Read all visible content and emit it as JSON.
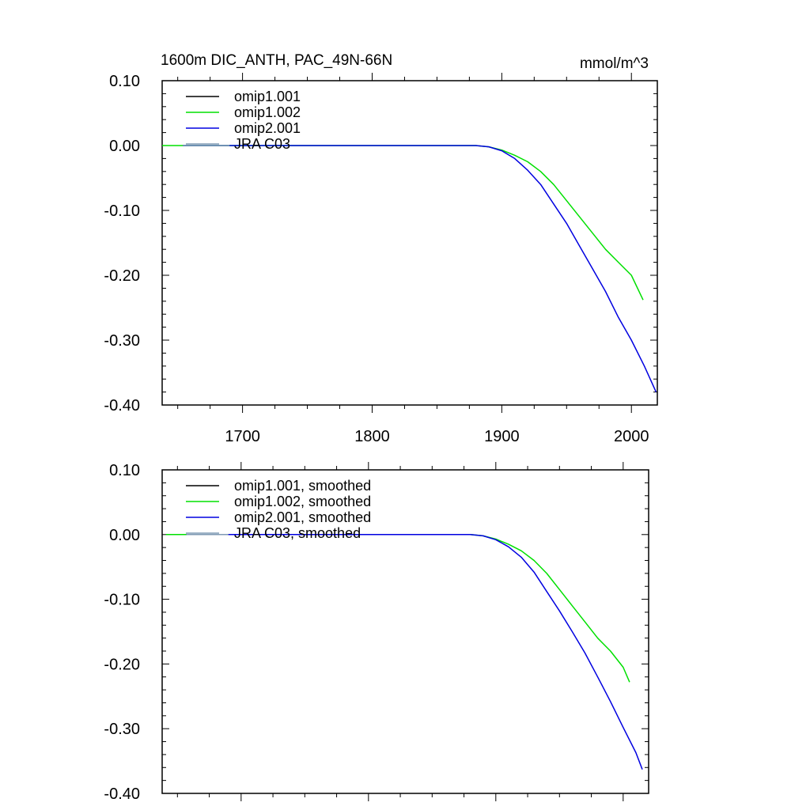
{
  "figure": {
    "title_left": "1600m DIC_ANTH, PAC_49N-66N",
    "title_right": "mmol/m^3"
  },
  "chart_data": [
    {
      "type": "line",
      "title": "1600m DIC_ANTH, PAC_49N-66N",
      "units": "mmol/m^3",
      "xlim": [
        1638,
        2020
      ],
      "ylim": [
        -0.4,
        0.1
      ],
      "x_ticks": [
        1700,
        1800,
        1900,
        2000
      ],
      "x_tick_labels": [
        "1700",
        "1800",
        "1900",
        "2000"
      ],
      "y_ticks": [
        0.1,
        0.0,
        -0.1,
        -0.2,
        -0.3,
        -0.4
      ],
      "y_tick_labels": [
        "0.10",
        "0.00",
        "-0.10",
        "-0.20",
        "-0.30",
        "-0.40"
      ],
      "legend_position": "top-left",
      "series": [
        {
          "name": "omip1.001",
          "color": "#000000",
          "x": [],
          "y": []
        },
        {
          "name": "omip1.002",
          "color": "#00e000",
          "x": [
            1638,
            1880,
            1890,
            1900,
            1910,
            1920,
            1930,
            1940,
            1950,
            1960,
            1970,
            1980,
            1990,
            2000,
            2009
          ],
          "y": [
            0.0,
            0.0,
            -0.002,
            -0.007,
            -0.015,
            -0.025,
            -0.04,
            -0.06,
            -0.085,
            -0.11,
            -0.135,
            -0.16,
            -0.18,
            -0.2,
            -0.238
          ]
        },
        {
          "name": "omip2.001",
          "color": "#0000e0",
          "x": [
            1654,
            1880,
            1890,
            1900,
            1910,
            1920,
            1930,
            1940,
            1950,
            1960,
            1970,
            1980,
            1990,
            2000,
            2010,
            2019
          ],
          "y": [
            0.0,
            0.0,
            -0.002,
            -0.008,
            -0.02,
            -0.038,
            -0.06,
            -0.09,
            -0.12,
            -0.155,
            -0.19,
            -0.225,
            -0.265,
            -0.3,
            -0.34,
            -0.38
          ]
        },
        {
          "name": "JRA C03",
          "color": "#7f9ab3",
          "x": [
            1654,
            1690
          ],
          "y": [
            0.0,
            0.0
          ]
        }
      ]
    },
    {
      "type": "line",
      "xlim": [
        1638,
        2020
      ],
      "ylim": [
        -0.4,
        0.1
      ],
      "x_ticks": [
        1700,
        1800,
        1900,
        2000
      ],
      "y_ticks": [
        0.1,
        0.0,
        -0.1,
        -0.2,
        -0.3,
        -0.4
      ],
      "y_tick_labels": [
        "0.10",
        "0.00",
        "-0.10",
        "-0.20",
        "-0.30",
        "-0.40"
      ],
      "legend_position": "top-left",
      "series": [
        {
          "name": "omip1.001, smoothed",
          "color": "#000000",
          "x": [],
          "y": []
        },
        {
          "name": "omip1.002, smoothed",
          "color": "#00e000",
          "x": [
            1641,
            1880,
            1890,
            1900,
            1910,
            1920,
            1930,
            1940,
            1950,
            1960,
            1970,
            1980,
            1990,
            2000,
            2005
          ],
          "y": [
            0.0,
            0.0,
            -0.002,
            -0.007,
            -0.015,
            -0.025,
            -0.04,
            -0.06,
            -0.085,
            -0.11,
            -0.135,
            -0.16,
            -0.18,
            -0.205,
            -0.228
          ]
        },
        {
          "name": "omip2.001, smoothed",
          "color": "#0000e0",
          "x": [
            1657,
            1880,
            1890,
            1900,
            1910,
            1920,
            1930,
            1940,
            1950,
            1960,
            1970,
            1980,
            1990,
            2000,
            2010,
            2015
          ],
          "y": [
            0.0,
            0.0,
            -0.002,
            -0.008,
            -0.019,
            -0.035,
            -0.058,
            -0.088,
            -0.118,
            -0.15,
            -0.183,
            -0.22,
            -0.258,
            -0.298,
            -0.337,
            -0.363
          ]
        },
        {
          "name": "JRA C03, smoothed",
          "color": "#7f9ab3",
          "x": [
            1657,
            1690
          ],
          "y": [
            0.0,
            0.0
          ]
        }
      ]
    }
  ]
}
